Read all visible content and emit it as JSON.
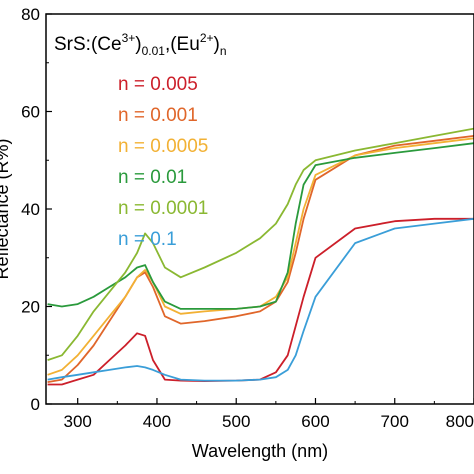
{
  "chart_data": {
    "type": "line",
    "composition": {
      "prefix": "SrS:(Ce",
      "ce_sup": "3+",
      "ce_close": ")",
      "ce_sub": "0.01",
      "mid": ",(Eu",
      "eu_sup": "2+",
      "eu_close": ")",
      "eu_sub": "n"
    },
    "xlabel": "Wavelength (nm)",
    "ylabel": "Reflectance (R%)",
    "xlim": [
      260,
      800
    ],
    "ylim": [
      0,
      80
    ],
    "xticks": [
      300,
      400,
      500,
      600,
      700,
      800
    ],
    "yticks": [
      0,
      20,
      40,
      60,
      80
    ],
    "series": [
      {
        "name": "n = 0.005",
        "color": "#cc1f2a",
        "x": [
          262,
          280,
          300,
          320,
          340,
          360,
          375,
          385,
          395,
          410,
          430,
          460,
          500,
          530,
          550,
          565,
          575,
          585,
          600,
          650,
          700,
          750,
          800
        ],
        "y": [
          4,
          4,
          5,
          6,
          9,
          12,
          14.5,
          14,
          9,
          5,
          4.8,
          4.7,
          4.8,
          5,
          6.5,
          10,
          16,
          22,
          30,
          36,
          37.5,
          38,
          38
        ]
      },
      {
        "name": "n = 0.001",
        "color": "#e0662a",
        "x": [
          262,
          280,
          300,
          320,
          340,
          360,
          375,
          385,
          395,
          410,
          430,
          460,
          500,
          530,
          550,
          565,
          575,
          585,
          600,
          650,
          700,
          750,
          800
        ],
        "y": [
          4.5,
          5,
          8,
          12,
          17,
          22,
          26,
          27,
          24,
          18,
          16.5,
          17,
          18,
          19,
          21,
          25,
          31,
          38,
          46,
          51,
          53,
          54,
          55
        ]
      },
      {
        "name": "n = 0.0005",
        "color": "#f2b134",
        "x": [
          262,
          280,
          300,
          320,
          340,
          360,
          375,
          385,
          395,
          410,
          430,
          460,
          500,
          530,
          550,
          565,
          575,
          585,
          600,
          650,
          700,
          750,
          800
        ],
        "y": [
          6,
          7,
          10,
          14,
          18,
          22,
          26,
          27.5,
          25,
          20,
          18.5,
          19,
          19.5,
          20,
          22,
          26,
          33,
          40,
          47,
          51,
          52.5,
          53.5,
          54.5
        ]
      },
      {
        "name": "n = 0.01",
        "color": "#2a9a3c",
        "x": [
          262,
          280,
          300,
          320,
          340,
          360,
          375,
          385,
          395,
          410,
          430,
          460,
          500,
          530,
          550,
          565,
          575,
          585,
          600,
          650,
          700,
          750,
          800
        ],
        "y": [
          20.5,
          20,
          20.5,
          22,
          24,
          26,
          28,
          28.5,
          25,
          21,
          19.5,
          19.5,
          19.5,
          20,
          21,
          27,
          37,
          45,
          49,
          50.5,
          51.5,
          52.5,
          53.5
        ]
      },
      {
        "name": "n = 0.0001",
        "color": "#8ab832",
        "x": [
          262,
          280,
          300,
          320,
          340,
          360,
          375,
          385,
          395,
          410,
          430,
          460,
          500,
          530,
          550,
          565,
          575,
          585,
          600,
          650,
          700,
          750,
          800
        ],
        "y": [
          9,
          10,
          14,
          19,
          23,
          27,
          31,
          35,
          33,
          28,
          26,
          28,
          31,
          34,
          37,
          41,
          45,
          48,
          50,
          52,
          53.5,
          55,
          56.5
        ]
      },
      {
        "name": "n = 0.1",
        "color": "#3a9ed8",
        "x": [
          262,
          280,
          300,
          320,
          340,
          360,
          375,
          385,
          395,
          410,
          430,
          460,
          500,
          530,
          550,
          565,
          575,
          585,
          600,
          650,
          700,
          750,
          800
        ],
        "y": [
          5,
          5.5,
          6,
          6.5,
          7,
          7.5,
          7.8,
          7.5,
          7,
          6,
          5,
          4.8,
          4.8,
          5,
          5.5,
          7,
          10,
          15,
          22,
          33,
          36,
          37,
          38
        ]
      }
    ]
  }
}
